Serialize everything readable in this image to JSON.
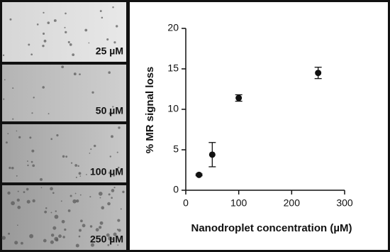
{
  "image_panels": [
    "25 µM",
    "50 µM",
    "100 µM",
    "250 µM"
  ],
  "chart_data": {
    "type": "scatter",
    "xlabel": "Nanodroplet concentration (µM)",
    "ylabel": "% MR signal loss",
    "x": [
      25,
      50,
      100,
      250
    ],
    "values": [
      1.9,
      4.4,
      11.4,
      14.5
    ],
    "errors": [
      0.1,
      1.5,
      0.4,
      0.7
    ],
    "color": "#111111",
    "xlim": [
      0,
      300
    ],
    "xticks": [
      0,
      100,
      200,
      300
    ],
    "ylim": [
      0,
      20
    ],
    "yticks": [
      0,
      5,
      10,
      15,
      20
    ]
  }
}
